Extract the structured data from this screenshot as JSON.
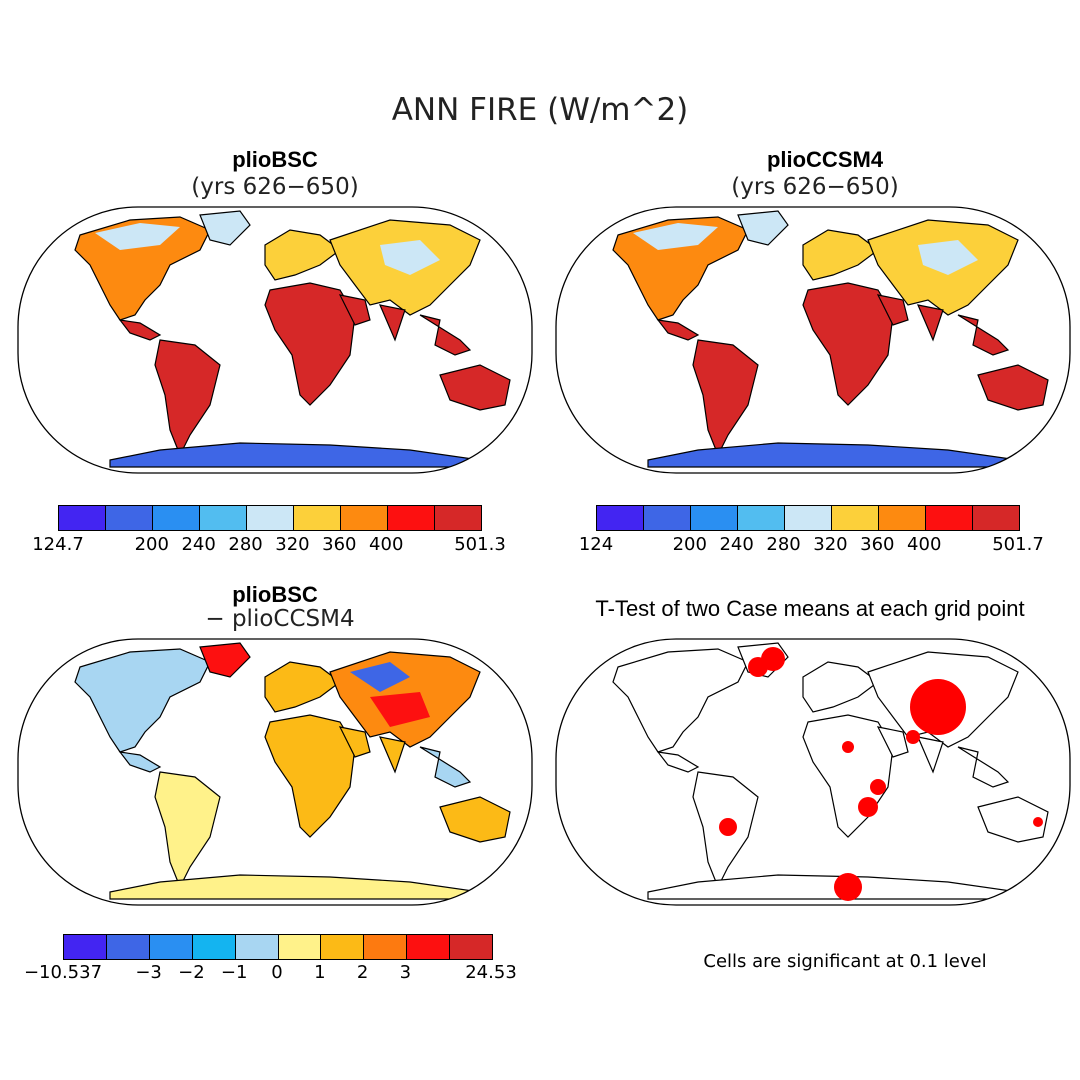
{
  "title": "ANN FIRE (W/m^2)",
  "panels": {
    "top_left": {
      "title": "plioBSC",
      "subtitle": "(yrs 626−650)"
    },
    "top_right": {
      "title": "plioCCSM4",
      "subtitle": "(yrs 626−650)"
    },
    "bottom_left": {
      "title": "plioBSC",
      "subtitle": "− plioCCSM4"
    },
    "bottom_right": {
      "title": "T-Test of two Case means at each grid point",
      "note": "Cells are significant at 0.1 level"
    }
  },
  "colorbars": {
    "top_left": {
      "colors": [
        "#4325f2",
        "#3e66e6",
        "#2a8ff2",
        "#52bdf0",
        "#cce7f6",
        "#fcd03a",
        "#fd8a10",
        "#fd1010",
        "#d62828"
      ],
      "labels": [
        "124.7",
        "200",
        "240",
        "280",
        "320",
        "360",
        "400",
        "501.3"
      ],
      "label_edges": [
        0,
        2,
        3,
        4,
        5,
        6,
        7,
        9
      ]
    },
    "top_right": {
      "colors": [
        "#4325f2",
        "#3e66e6",
        "#2a8ff2",
        "#52bdf0",
        "#cce7f6",
        "#fcd03a",
        "#fd8a10",
        "#fd1010",
        "#d62828"
      ],
      "labels": [
        "124",
        "200",
        "240",
        "280",
        "320",
        "360",
        "400",
        "501.7"
      ],
      "label_edges": [
        0,
        2,
        3,
        4,
        5,
        6,
        7,
        9
      ]
    },
    "bottom_left": {
      "colors": [
        "#4325f2",
        "#3e66e6",
        "#2a8ff2",
        "#14b4f0",
        "#a8d6f2",
        "#fff28a",
        "#fcba16",
        "#fd7a10",
        "#fd1010",
        "#d62828"
      ],
      "labels": [
        "−10.537",
        "−3",
        "−2",
        "−1",
        "0",
        "1",
        "2",
        "3",
        "24.53"
      ],
      "label_edges": [
        0,
        2,
        3,
        4,
        5,
        6,
        7,
        8,
        10
      ]
    }
  },
  "map_colors": {
    "outline": "#000000",
    "ocean": "#ffffff",
    "tropics": "#d62828",
    "warm": "#fd1010",
    "orange": "#fd8a10",
    "yellow": "#fcd03a",
    "light_blue": "#cce7f6",
    "blue": "#52bdf0",
    "deep_blue": "#3e66e6",
    "diff_pos": "#fcba16",
    "diff_neg": "#a8d6f2",
    "diff_zero": "#fff28a",
    "sig": "#ff0000"
  }
}
